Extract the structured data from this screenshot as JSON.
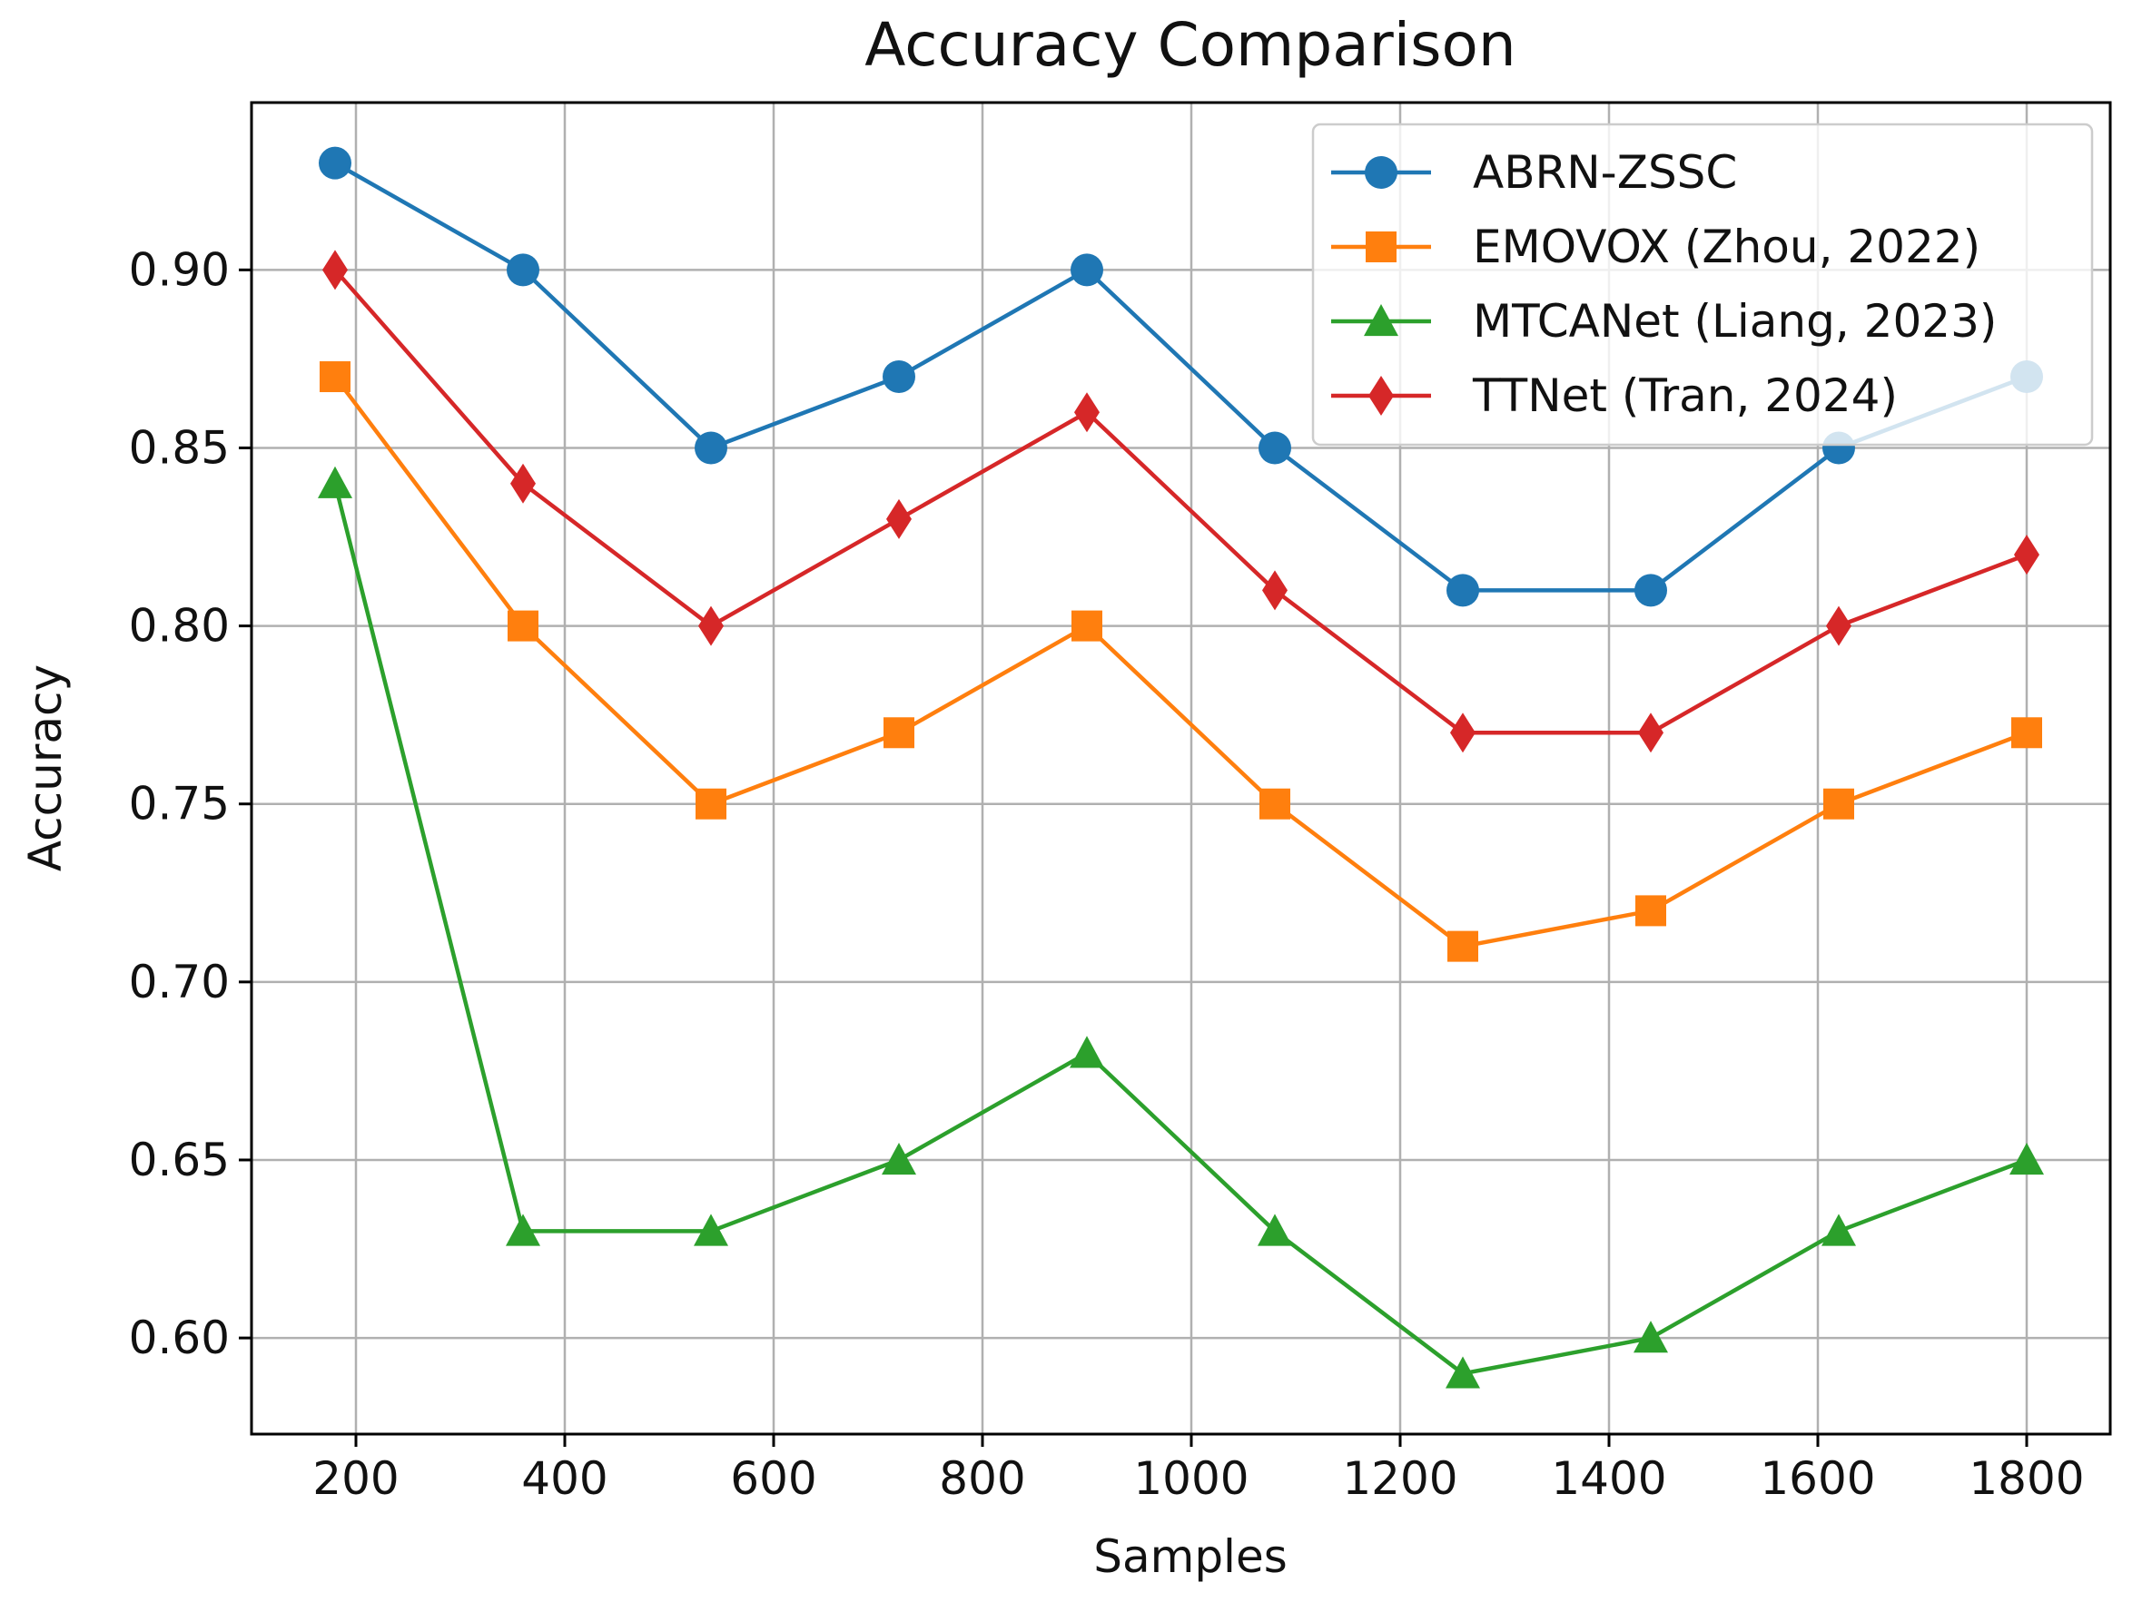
{
  "chart_data": {
    "type": "line",
    "title": "Accuracy Comparison",
    "xlabel": "Samples",
    "ylabel": "Accuracy",
    "xlim": [
      100,
      1880
    ],
    "ylim": [
      0.573,
      0.947
    ],
    "xticks": [
      200,
      400,
      600,
      800,
      1000,
      1200,
      1400,
      1600,
      1800
    ],
    "yticks": [
      0.6,
      0.65,
      0.7,
      0.75,
      0.8,
      0.85,
      0.9
    ],
    "ytick_labels": [
      "0.60",
      "0.65",
      "0.70",
      "0.75",
      "0.80",
      "0.85",
      "0.90"
    ],
    "grid": true,
    "legend_position": "top-right",
    "x": [
      180,
      360,
      540,
      720,
      900,
      1080,
      1260,
      1440,
      1620,
      1800
    ],
    "series": [
      {
        "name": "ABRN-ZSSC",
        "color": "#1f77b4",
        "marker": "circle",
        "values": [
          0.93,
          0.9,
          0.85,
          0.87,
          0.9,
          0.85,
          0.81,
          0.81,
          0.85,
          0.87
        ]
      },
      {
        "name": "EMOVOX (Zhou, 2022)",
        "color": "#ff7f0e",
        "marker": "square",
        "values": [
          0.87,
          0.8,
          0.75,
          0.77,
          0.8,
          0.75,
          0.71,
          0.72,
          0.75,
          0.77
        ]
      },
      {
        "name": "MTCANet (Liang, 2023)",
        "color": "#2ca02c",
        "marker": "triangle",
        "values": [
          0.84,
          0.63,
          0.63,
          0.65,
          0.68,
          0.63,
          0.59,
          0.6,
          0.63,
          0.65
        ]
      },
      {
        "name": "TTNet (Tran, 2024)",
        "color": "#d62728",
        "marker": "diamond",
        "values": [
          0.9,
          0.84,
          0.8,
          0.83,
          0.86,
          0.81,
          0.77,
          0.77,
          0.8,
          0.82
        ]
      }
    ]
  }
}
